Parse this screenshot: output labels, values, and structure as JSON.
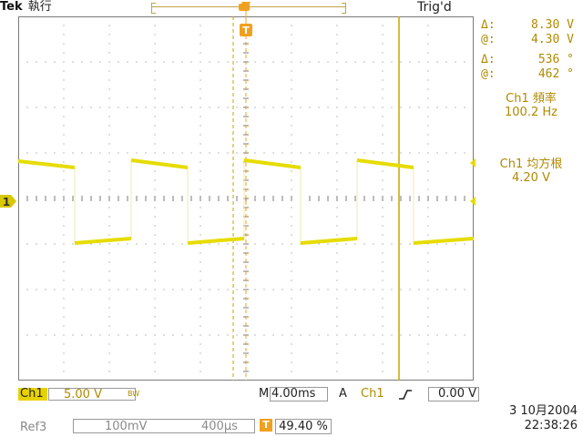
{
  "header": {
    "brand": "Tek",
    "run_state": "執行",
    "trigger_status": "Trig'd"
  },
  "cursor_readouts": [
    {
      "symbol": "Δ:",
      "value": "8.30 V"
    },
    {
      "symbol": "@:",
      "value": "4.30 V"
    },
    {
      "symbol": "Δ:",
      "value": "536 °"
    },
    {
      "symbol": "@:",
      "value": "462 °"
    }
  ],
  "measurements": [
    {
      "line1": "Ch1 頻率",
      "line2": "100.2 Hz"
    },
    {
      "line1": "Ch1 均方根",
      "line2": "4.20 V"
    }
  ],
  "markers": {
    "trigger_marker": "T",
    "channel_marker": "1"
  },
  "status": {
    "ch1_label": "Ch1",
    "ch1_scale": "5.00 V",
    "ch1_bw": "BW",
    "horizontal_prefix": "M",
    "horizontal_scale": "4.00ms",
    "trigger_mode": "A",
    "trigger_source": "Ch1",
    "trigger_slope_icon": "rising-edge-icon",
    "trigger_level": "0.00 V",
    "ref_label": "Ref3",
    "ref_vertical": "100mV",
    "ref_horizontal": "400µs",
    "trigger_position": "49.40 %",
    "date": "3 10月2004",
    "time": "22:38:26"
  },
  "colors": {
    "trace": "#e6dc00",
    "cursor": "#c9a300",
    "readout": "#b08a00",
    "trigger": "#f0a020",
    "grid": "#7a7a7a"
  }
}
